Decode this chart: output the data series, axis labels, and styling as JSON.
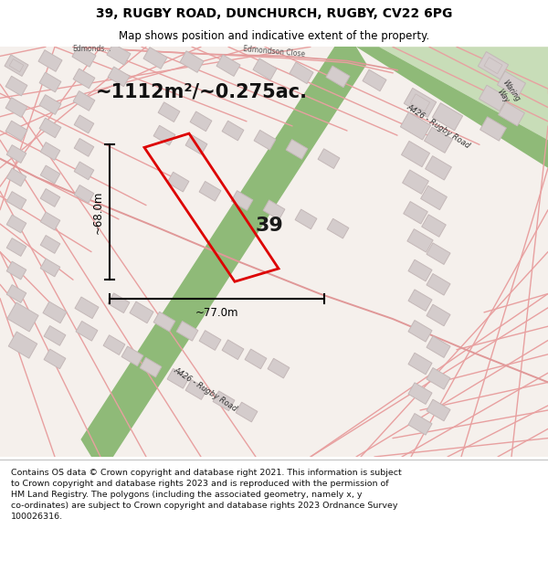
{
  "title": "39, RUGBY ROAD, DUNCHURCH, RUGBY, CV22 6PG",
  "subtitle": "Map shows position and indicative extent of the property.",
  "footer_line1": "Contains OS data © Crown copyright and database right 2021. This information is subject to Crown copyright and database rights 2023 and is reproduced with the permission of",
  "footer_line2": "HM Land Registry. The polygons (including the associated geometry, namely x, y co-ordinates) are subject to Crown copyright and database rights 2023 Ordnance Survey 100026316.",
  "area_label": "~1112m²/~0.275ac.",
  "width_label": "~77.0m",
  "height_label": "~68.0m",
  "property_number": "39",
  "map_bg": "#f7f3f0",
  "green_road_color": "#8fba78",
  "green_road_edge": "#7aaa66",
  "green_fill_color": "#d4e8c8",
  "building_color": "#d4cccc",
  "building_edge": "#c4b8b8",
  "road_color": "#e8a0a0",
  "road_lw": 1.0,
  "property_outline_color": "#dd0000",
  "property_lw": 2.0,
  "dim_line_color": "#000000",
  "title_color": "#000000",
  "title_fontsize": 10,
  "subtitle_fontsize": 8.5,
  "area_fontsize": 15,
  "dim_fontsize": 8.5,
  "prop_num_fontsize": 16,
  "footer_fontsize": 6.8,
  "fig_width": 6.0,
  "fig_height": 6.25,
  "dpi": 100
}
